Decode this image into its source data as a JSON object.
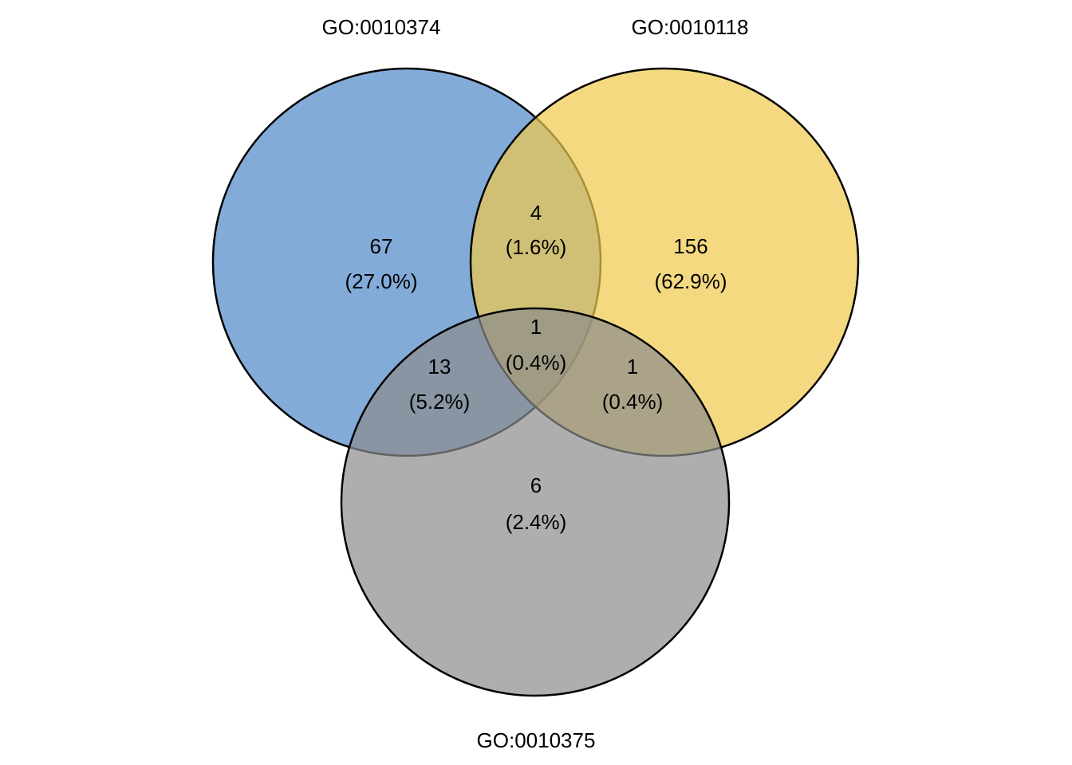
{
  "sets": [
    {
      "id": "A",
      "label": "GO:0010374",
      "color": "#4E87C8"
    },
    {
      "id": "B",
      "label": "GO:0010118",
      "color": "#EFC94C"
    },
    {
      "id": "C",
      "label": "GO:0010375",
      "color": "#8C8C8C"
    }
  ],
  "fill_opacity": 0.7,
  "regions": {
    "A_only": {
      "count": "67",
      "percent": "(27.0%)"
    },
    "B_only": {
      "count": "156",
      "percent": "(62.9%)"
    },
    "C_only": {
      "count": "6",
      "percent": "(2.4%)"
    },
    "AB": {
      "count": "4",
      "percent": "(1.6%)"
    },
    "AC": {
      "count": "13",
      "percent": "(5.2%)"
    },
    "BC": {
      "count": "1",
      "percent": "(0.4%)"
    },
    "ABC": {
      "count": "1",
      "percent": "(0.4%)"
    }
  }
}
